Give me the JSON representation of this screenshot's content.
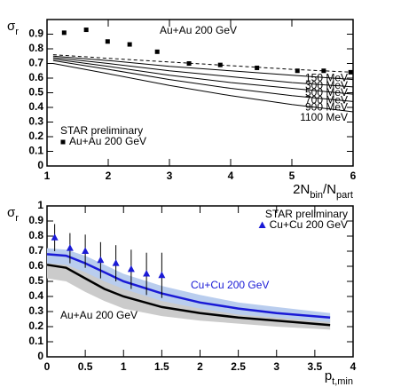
{
  "chart_data": [
    {
      "type": "line",
      "xlim": [
        1,
        6
      ],
      "xticks": [
        1,
        2,
        3,
        4,
        5,
        6
      ],
      "ylim": [
        0,
        1
      ],
      "yticks": [
        0,
        0.1,
        0.2,
        0.3,
        0.4,
        0.5,
        0.6,
        0.7,
        0.8,
        0.9
      ],
      "xlabel": [
        {
          "text": "2N"
        },
        {
          "text": "bin",
          "sub": true
        },
        {
          "text": "/N"
        },
        {
          "text": "part",
          "sub": true
        }
      ],
      "ylabel": [
        {
          "text": "σ"
        },
        {
          "text": "r",
          "sub": true
        }
      ],
      "legend": {
        "title": "STAR preliminary",
        "corner": "lower-left"
      },
      "annotations": [
        {
          "text": "Au+Au 200 GeV",
          "color": "#000000"
        }
      ],
      "series": [
        {
          "label": "150 MeV",
          "color": "#000000",
          "dash": true,
          "x": [
            1.1,
            2,
            3,
            4,
            5,
            6
          ],
          "values": [
            0.76,
            0.735,
            0.71,
            0.685,
            0.66,
            0.64
          ]
        },
        {
          "label": "300 MeV",
          "color": "#000000",
          "x": [
            1.1,
            2,
            3,
            4,
            5,
            6
          ],
          "values": [
            0.75,
            0.72,
            0.68,
            0.65,
            0.62,
            0.59
          ]
        },
        {
          "label": "500 MeV",
          "color": "#000000",
          "x": [
            1.1,
            2,
            3,
            4,
            5,
            6
          ],
          "values": [
            0.74,
            0.7,
            0.65,
            0.61,
            0.57,
            0.54
          ]
        },
        {
          "label": "700 MeV",
          "color": "#000000",
          "x": [
            1.1,
            2,
            3,
            4,
            5,
            6
          ],
          "values": [
            0.73,
            0.68,
            0.62,
            0.57,
            0.53,
            0.49
          ]
        },
        {
          "label": "900 MeV",
          "color": "#000000",
          "x": [
            1.1,
            2,
            3,
            4,
            5,
            6
          ],
          "values": [
            0.72,
            0.66,
            0.59,
            0.53,
            0.48,
            0.44
          ]
        },
        {
          "label": "1100 MeV",
          "color": "#000000",
          "x": [
            1.1,
            2,
            3,
            4,
            5,
            6
          ],
          "values": [
            0.7,
            0.63,
            0.55,
            0.48,
            0.42,
            0.37
          ]
        },
        {
          "name": "Au+Au 200 GeV",
          "marker": "square",
          "color": "#000000",
          "x": [
            1.28,
            1.64,
            1.99,
            2.35,
            2.8,
            3.32,
            3.83,
            4.43,
            5.09,
            5.52,
            5.96
          ],
          "values": [
            0.91,
            0.93,
            0.85,
            0.83,
            0.78,
            0.7,
            0.69,
            0.67,
            0.65,
            0.65,
            0.64
          ]
        }
      ]
    },
    {
      "type": "line",
      "xlim": [
        0,
        4
      ],
      "xticks": [
        0,
        0.5,
        1,
        1.5,
        2,
        2.5,
        3,
        3.5,
        4
      ],
      "ylim": [
        0,
        1
      ],
      "yticks": [
        0,
        0.1,
        0.2,
        0.3,
        0.4,
        0.5,
        0.6,
        0.7,
        0.8,
        0.9,
        1
      ],
      "xlabel": [
        {
          "text": "p"
        },
        {
          "text": "t,min",
          "sub": true
        }
      ],
      "ylabel": [
        {
          "text": "σ"
        },
        {
          "text": "r",
          "sub": true
        }
      ],
      "legend": {
        "title": "STAR preliminary",
        "corner": "upper-right"
      },
      "annotations": [
        {
          "text": "Cu+Cu 200 GeV",
          "color": "#1a1ad6"
        },
        {
          "text": "Au+Au 200 GeV",
          "color": "#000000"
        }
      ],
      "series": [
        {
          "color": "#000000",
          "band_color": "#cbcbcb",
          "x": [
            0,
            0.25,
            0.5,
            0.75,
            1,
            1.5,
            2,
            2.5,
            3,
            3.7
          ],
          "values": [
            0.61,
            0.59,
            0.52,
            0.45,
            0.4,
            0.33,
            0.29,
            0.26,
            0.24,
            0.21
          ],
          "upper": [
            0.66,
            0.65,
            0.6,
            0.54,
            0.48,
            0.4,
            0.35,
            0.31,
            0.28,
            0.25
          ],
          "lower": [
            0.52,
            0.5,
            0.43,
            0.37,
            0.32,
            0.27,
            0.24,
            0.22,
            0.2,
            0.18
          ]
        },
        {
          "color": "#1a1ad6",
          "band_color": "#b9cdee",
          "x": [
            0,
            0.25,
            0.5,
            0.75,
            1,
            1.5,
            2,
            2.5,
            3,
            3.7
          ],
          "values": [
            0.68,
            0.67,
            0.62,
            0.56,
            0.5,
            0.42,
            0.36,
            0.32,
            0.29,
            0.26
          ],
          "upper": [
            0.72,
            0.71,
            0.67,
            0.61,
            0.55,
            0.47,
            0.41,
            0.36,
            0.33,
            0.29
          ],
          "lower": [
            0.62,
            0.61,
            0.56,
            0.5,
            0.45,
            0.37,
            0.32,
            0.28,
            0.26,
            0.23
          ]
        },
        {
          "name": "Cu+Cu 200 GeV",
          "marker": "triangle",
          "color": "#1a1ad6",
          "x": [
            0.1,
            0.3,
            0.5,
            0.7,
            0.9,
            1.1,
            1.3,
            1.5
          ],
          "values": [
            0.79,
            0.72,
            0.7,
            0.64,
            0.62,
            0.58,
            0.55,
            0.54
          ],
          "errors": [
            0.09,
            0.1,
            0.11,
            0.12,
            0.12,
            0.13,
            0.14,
            0.15
          ]
        }
      ]
    }
  ]
}
